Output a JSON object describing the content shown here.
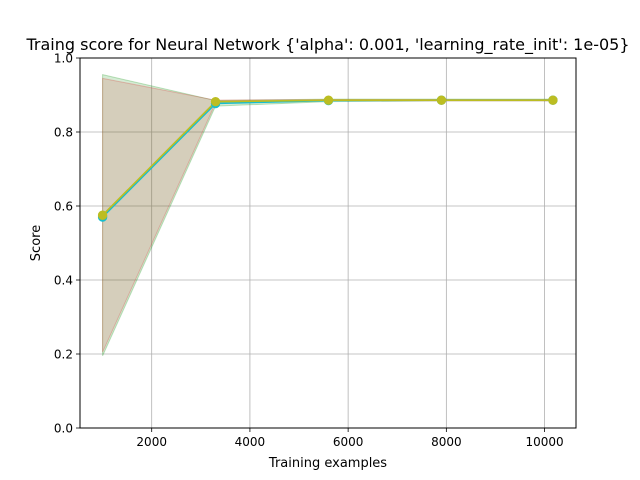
{
  "chart_data": {
    "type": "line",
    "title": "Traing score for Neural Network {'alpha': 0.001, 'learning_rate_init': 1e-05}",
    "xlabel": "Training examples",
    "ylabel": "Score",
    "xlim": [
      540,
      10640
    ],
    "ylim": [
      0.0,
      1.0
    ],
    "xticks": [
      2000,
      4000,
      6000,
      8000,
      10000
    ],
    "xtick_labels": [
      "2000",
      "4000",
      "6000",
      "8000",
      "10000"
    ],
    "yticks": [
      0.0,
      0.2,
      0.4,
      0.6,
      0.8,
      1.0
    ],
    "ytick_labels": [
      "0.0",
      "0.2",
      "0.4",
      "0.6",
      "0.8",
      "1.0"
    ],
    "grid": true,
    "series": [
      {
        "color": "#17becf",
        "marker": "circle",
        "x": [
          1000,
          3300,
          5600,
          7900,
          10170
        ],
        "y": [
          0.57,
          0.877,
          0.885,
          0.886,
          0.886
        ],
        "band_lower": [
          0.195,
          0.87,
          0.882,
          0.884,
          0.884
        ],
        "band_upper": [
          0.955,
          0.885,
          0.889,
          0.889,
          0.889
        ],
        "band_color": "#2ca02c",
        "band_opacity": 0.2
      },
      {
        "color": "#bcbd22",
        "marker": "circle",
        "x": [
          1000,
          3300,
          5600,
          7900,
          10170
        ],
        "y": [
          0.575,
          0.882,
          0.886,
          0.886,
          0.886
        ],
        "band_lower": [
          0.205,
          0.878,
          0.884,
          0.884,
          0.884
        ],
        "band_upper": [
          0.945,
          0.886,
          0.888,
          0.888,
          0.888
        ],
        "band_color": "#d62728",
        "band_opacity": 0.15
      }
    ]
  }
}
